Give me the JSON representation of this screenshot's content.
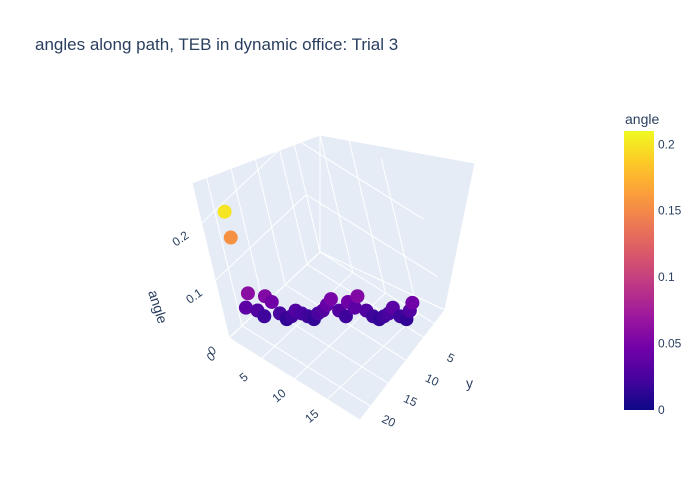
{
  "chart_data": {
    "type": "scatter3d",
    "title": "angles along path, TEB in dynamic office: Trial 3",
    "axes": {
      "x": {
        "label": "",
        "ticks": [
          "0",
          "5",
          "10",
          "15"
        ],
        "range": [
          0,
          20
        ]
      },
      "y": {
        "label": "y",
        "ticks": [
          "5",
          "10",
          "15",
          "20"
        ],
        "range": [
          2,
          23
        ]
      },
      "z": {
        "label": "angle",
        "ticks": [
          "0",
          "0.1",
          "0.2"
        ],
        "range": [
          0,
          0.27
        ]
      }
    },
    "colorbar": {
      "title": "angle",
      "ticks": [
        "0",
        "0.05",
        "0.1",
        "0.15",
        "0.2"
      ],
      "range": [
        0,
        0.21
      ],
      "colorscale": [
        "#0d0887",
        "#46039f",
        "#7201a8",
        "#9c179e",
        "#bd3786",
        "#d8576b",
        "#ed7953",
        "#fb9f3a",
        "#fdca26",
        "#f0f921"
      ]
    },
    "points": [
      {
        "x": 1.0,
        "y": 19.5,
        "angle": 0.035
      },
      {
        "x": 1.5,
        "y": 19.0,
        "angle": 0.06
      },
      {
        "x": 2.0,
        "y": 18.5,
        "angle": 0.03
      },
      {
        "x": 2.5,
        "y": 18.0,
        "angle": 0.02
      },
      {
        "x": 3.0,
        "y": 17.5,
        "angle": 0.055
      },
      {
        "x": 3.5,
        "y": 17.0,
        "angle": 0.045
      },
      {
        "x": 4.0,
        "y": 16.5,
        "angle": 0.025
      },
      {
        "x": 4.5,
        "y": 16.0,
        "angle": 0.015
      },
      {
        "x": 5.0,
        "y": 15.5,
        "angle": 0.02
      },
      {
        "x": 5.5,
        "y": 15.0,
        "angle": 0.03
      },
      {
        "x": 6.0,
        "y": 14.5,
        "angle": 0.025
      },
      {
        "x": 6.5,
        "y": 14.0,
        "angle": 0.02
      },
      {
        "x": 7.0,
        "y": 13.5,
        "angle": 0.015
      },
      {
        "x": 7.5,
        "y": 13.0,
        "angle": 0.025
      },
      {
        "x": 8.0,
        "y": 12.5,
        "angle": 0.03
      },
      {
        "x": 8.5,
        "y": 12.0,
        "angle": 0.04
      },
      {
        "x": 9.0,
        "y": 11.5,
        "angle": 0.05
      },
      {
        "x": 9.5,
        "y": 11.0,
        "angle": 0.03
      },
      {
        "x": 10.0,
        "y": 10.5,
        "angle": 0.02
      },
      {
        "x": 10.5,
        "y": 10.0,
        "angle": 0.045
      },
      {
        "x": 11.0,
        "y": 9.5,
        "angle": 0.035
      },
      {
        "x": 11.5,
        "y": 9.0,
        "angle": 0.055
      },
      {
        "x": 12.0,
        "y": 8.5,
        "angle": 0.03
      },
      {
        "x": 12.5,
        "y": 8.0,
        "angle": 0.02
      },
      {
        "x": 13.0,
        "y": 7.5,
        "angle": 0.015
      },
      {
        "x": 13.5,
        "y": 7.0,
        "angle": 0.02
      },
      {
        "x": 14.0,
        "y": 6.5,
        "angle": 0.025
      },
      {
        "x": 14.5,
        "y": 6.0,
        "angle": 0.035
      },
      {
        "x": 15.0,
        "y": 5.5,
        "angle": 0.02
      },
      {
        "x": 15.5,
        "y": 5.0,
        "angle": 0.015
      },
      {
        "x": 16.0,
        "y": 4.5,
        "angle": 0.03
      },
      {
        "x": 16.5,
        "y": 4.2,
        "angle": 0.045
      },
      {
        "x": 1.0,
        "y": 19.2,
        "angle": 0.2
      },
      {
        "x": 1.0,
        "y": 19.2,
        "angle": 0.155
      }
    ]
  }
}
